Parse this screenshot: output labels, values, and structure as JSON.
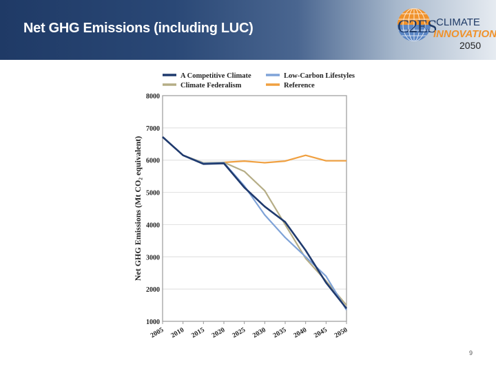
{
  "slide": {
    "title": "Net GHG Emissions (including LUC)",
    "page_number": "9",
    "logo": {
      "mark": "C2ES",
      "line1": "CLIMATE",
      "line2": "INNOVATION",
      "line3": "2050",
      "icon": "globe-icon"
    }
  },
  "chart_data": {
    "type": "line",
    "title": "",
    "xlabel": "",
    "ylabel": "Net GHG Emissions (Mt CO₂ equivalent)",
    "x": [
      2005,
      2010,
      2015,
      2020,
      2025,
      2030,
      2035,
      2040,
      2045,
      2050
    ],
    "xticks": [
      "2005",
      "2010",
      "2015",
      "2020",
      "2025",
      "2030",
      "2035",
      "2040",
      "2045",
      "2050"
    ],
    "yticks": [
      "1000",
      "2000",
      "3000",
      "4000",
      "5000",
      "6000",
      "7000",
      "8000"
    ],
    "ylim": [
      1000,
      8000
    ],
    "xlim": [
      2005,
      2050
    ],
    "grid": true,
    "legend_position": "top",
    "series": [
      {
        "name": "A Competitive Climate",
        "color": "#1f3a6e",
        "values": [
          6720,
          6150,
          5880,
          5900,
          5150,
          4560,
          4080,
          3200,
          2200,
          1400
        ]
      },
      {
        "name": "Low-Carbon Lifestyles",
        "color": "#7fa3d8",
        "values": [
          6720,
          6150,
          5900,
          5920,
          5200,
          4300,
          3600,
          3000,
          2400,
          1350
        ]
      },
      {
        "name": "Climate Federalism",
        "color": "#b5ad86",
        "values": [
          6720,
          6150,
          5920,
          5930,
          5650,
          5050,
          4000,
          2950,
          2250,
          1500
        ]
      },
      {
        "name": "Reference",
        "color": "#f0a040",
        "values": [
          6720,
          6150,
          5900,
          5930,
          5970,
          5920,
          5970,
          6150,
          5980,
          5980
        ]
      }
    ]
  }
}
